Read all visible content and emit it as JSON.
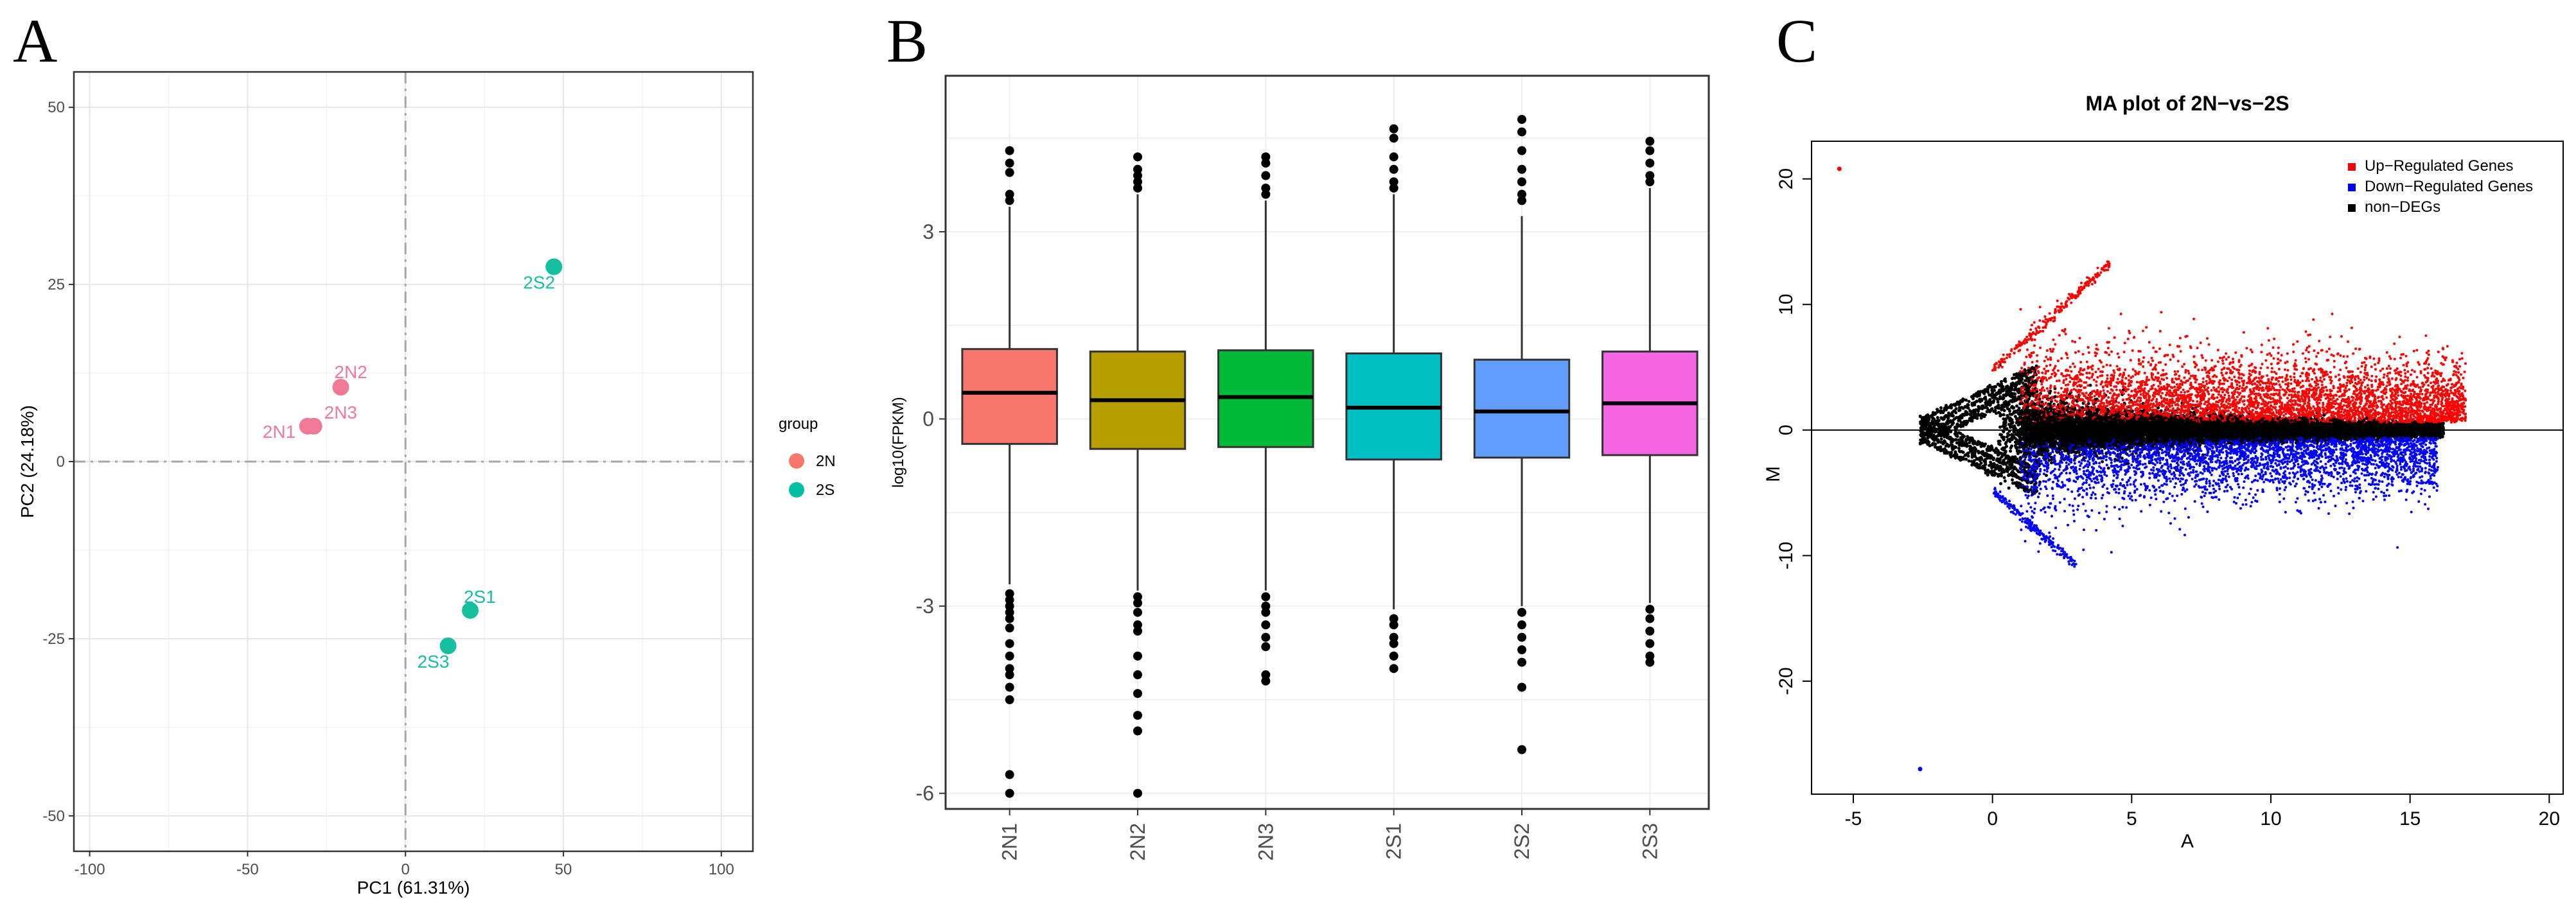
{
  "chart_data": [
    {
      "panel": "A",
      "type": "scatter",
      "xlabel": "PC1 (61.31%)",
      "ylabel": "PC2 (24.18%)",
      "xlim": [
        -105,
        110
      ],
      "ylim": [
        -55,
        55
      ],
      "xticks": [
        -100,
        -50,
        0,
        50,
        100
      ],
      "yticks": [
        -50,
        -25,
        0,
        25,
        50
      ],
      "grid": true,
      "legend": {
        "title": "group",
        "placement": "right",
        "entries": [
          {
            "name": "2N",
            "color": "#f8766d"
          },
          {
            "name": "2S",
            "color": "#00bfa4"
          }
        ]
      },
      "series": [
        {
          "name": "2N",
          "color": "#f07a96",
          "points": [
            {
              "label": "2N1",
              "x": -31,
              "y": 5
            },
            {
              "label": "2N2",
              "x": -20.5,
              "y": 10.5
            },
            {
              "label": "2N3",
              "x": -29,
              "y": 5
            }
          ]
        },
        {
          "name": "2S",
          "color": "#15bfa0",
          "points": [
            {
              "label": "2S1",
              "x": 20.5,
              "y": -21
            },
            {
              "label": "2S2",
              "x": 47,
              "y": 27.5
            },
            {
              "label": "2S3",
              "x": 13.5,
              "y": -26
            }
          ]
        }
      ]
    },
    {
      "panel": "B",
      "type": "box",
      "ylabel": "log10(FPKM)",
      "ylim": [
        -6.25,
        5.5
      ],
      "yticks": [
        3,
        0,
        -3,
        -6
      ],
      "categories": [
        "2N1",
        "2N2",
        "2N3",
        "2S1",
        "2S2",
        "2S3"
      ],
      "colors": [
        "#f8766d",
        "#b79f00",
        "#00ba38",
        "#00bfc4",
        "#619cff",
        "#f564e3"
      ],
      "boxes": [
        {
          "q1": -0.4,
          "median": 0.42,
          "q3": 1.12,
          "whisker_low": -2.65,
          "whisker_high": 3.4,
          "outliers": [
            4.3,
            4.1,
            3.95,
            3.6,
            3.5,
            -2.8,
            -2.9,
            -3.0,
            -3.1,
            -3.2,
            -3.35,
            -3.6,
            -3.8,
            -4.0,
            -4.1,
            -4.3,
            -4.5,
            -5.7,
            -6.0
          ]
        },
        {
          "q1": -0.48,
          "median": 0.3,
          "q3": 1.08,
          "whisker_low": -2.75,
          "whisker_high": 3.6,
          "outliers": [
            4.2,
            4.0,
            3.9,
            3.8,
            3.7,
            -2.85,
            -2.95,
            -3.1,
            -3.3,
            -3.4,
            -3.8,
            -4.1,
            -4.4,
            -4.75,
            -5.0,
            -6.0
          ]
        },
        {
          "q1": -0.45,
          "median": 0.35,
          "q3": 1.1,
          "whisker_low": -2.75,
          "whisker_high": 3.5,
          "outliers": [
            4.2,
            4.1,
            3.9,
            3.7,
            3.6,
            -2.85,
            -3.0,
            -3.1,
            -3.3,
            -3.5,
            -3.65,
            -4.1,
            -4.2
          ]
        },
        {
          "q1": -0.65,
          "median": 0.18,
          "q3": 1.05,
          "whisker_low": -3.05,
          "whisker_high": 3.6,
          "outliers": [
            4.65,
            4.5,
            4.2,
            4.0,
            3.8,
            3.7,
            -3.2,
            -3.3,
            -3.5,
            -3.6,
            -3.8,
            -4.0
          ]
        },
        {
          "q1": -0.62,
          "median": 0.12,
          "q3": 0.95,
          "whisker_low": -3.0,
          "whisker_high": 3.25,
          "outliers": [
            4.8,
            4.6,
            4.3,
            4.0,
            3.8,
            3.6,
            3.5,
            -3.1,
            -3.3,
            -3.5,
            -3.7,
            -3.9,
            -4.3,
            -5.3
          ]
        },
        {
          "q1": -0.58,
          "median": 0.25,
          "q3": 1.08,
          "whisker_low": -2.95,
          "whisker_high": 3.7,
          "outliers": [
            4.45,
            4.3,
            4.1,
            3.9,
            3.8,
            -3.05,
            -3.2,
            -3.4,
            -3.6,
            -3.8,
            -3.9
          ]
        }
      ]
    },
    {
      "panel": "C",
      "type": "scatter",
      "title": "MA plot of 2N−vs−2S",
      "xlabel": "A",
      "ylabel": "M",
      "xlim": [
        -6.5,
        20.5
      ],
      "ylim": [
        -29,
        23
      ],
      "xticks": [
        -5,
        0,
        5,
        10,
        15,
        20
      ],
      "yticks": [
        20,
        10,
        0,
        -10,
        -20
      ],
      "reference_line": 0,
      "legend": {
        "placement": "top-right",
        "entries": [
          {
            "name": "Up−Regulated Genes",
            "color": "#ff0000"
          },
          {
            "name": "Down−Regulated Genes",
            "color": "#0000ff"
          },
          {
            "name": "non−DEGs",
            "color": "#000000"
          }
        ]
      },
      "highlight_points": [
        {
          "group": "Up−Regulated Genes",
          "x": -5.5,
          "y": 20.8
        },
        {
          "group": "Down−Regulated Genes",
          "x": -2.6,
          "y": -27
        }
      ]
    }
  ],
  "panels": {
    "a": {
      "letter": "A"
    },
    "b": {
      "letter": "B"
    },
    "c": {
      "letter": "C"
    }
  }
}
